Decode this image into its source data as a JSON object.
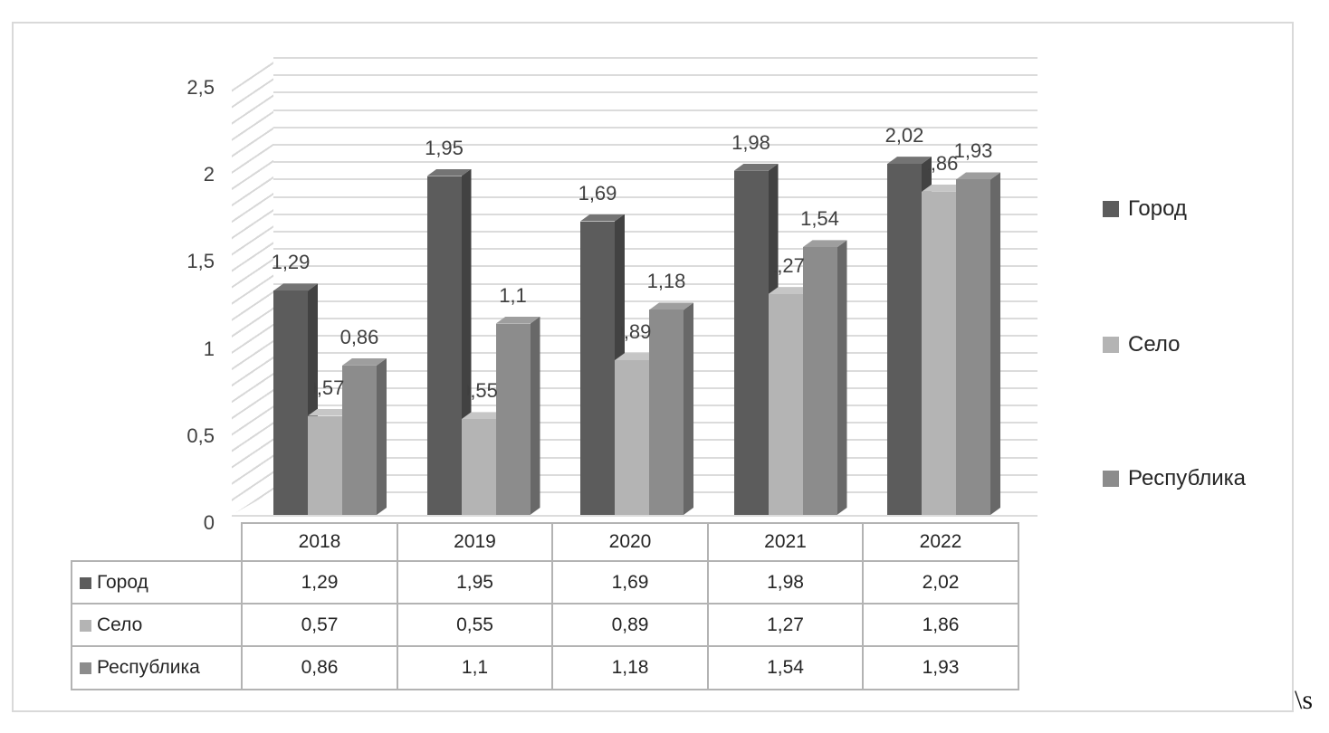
{
  "figure": {
    "border_color": "#d9d9d9",
    "background": "#ffffff",
    "corner_text": "\\s"
  },
  "chart_data": {
    "type": "bar",
    "style": "3d-clustered-column",
    "title": "",
    "xlabel": "",
    "ylabel": "",
    "categories": [
      "2018",
      "2019",
      "2020",
      "2021",
      "2022"
    ],
    "series": [
      {
        "name": "Город",
        "values": [
          1.29,
          1.95,
          1.69,
          1.98,
          2.02
        ],
        "labels": [
          "1,29",
          "1,95",
          "1,69",
          "1,98",
          "2,02"
        ],
        "color": "#5c5c5c",
        "side_color": "#424242",
        "top_color": "#747474"
      },
      {
        "name": "Село",
        "values": [
          0.57,
          0.55,
          0.89,
          1.27,
          1.86
        ],
        "labels": [
          "0,57",
          "0,55",
          "0,89",
          "1,27",
          "1,86"
        ],
        "color": "#b4b4b4",
        "side_color": "#8f8f8f",
        "top_color": "#c6c6c6"
      },
      {
        "name": "Республика",
        "values": [
          0.86,
          1.1,
          1.18,
          1.54,
          1.93
        ],
        "labels": [
          "0,86",
          "1,1",
          "1,18",
          "1,54",
          "1,93"
        ],
        "color": "#8c8c8c",
        "side_color": "#686868",
        "top_color": "#9e9e9e"
      }
    ],
    "ylim": [
      0,
      2.5
    ],
    "y_ticks": [
      {
        "value": 0,
        "label": "0"
      },
      {
        "value": 0.5,
        "label": "0,5"
      },
      {
        "value": 1,
        "label": "1"
      },
      {
        "value": 1.5,
        "label": "1,5"
      },
      {
        "value": 2,
        "label": "2"
      },
      {
        "value": 2.5,
        "label": "2,5"
      }
    ],
    "minor_gridline_step": 0.1,
    "grid": true,
    "gridline_color": "#dbdbdb",
    "legend_position": "right"
  },
  "data_table": {
    "columns": [
      "2018",
      "2019",
      "2020",
      "2021",
      "2022"
    ],
    "rows": [
      {
        "label": "Город",
        "values": [
          "1,29",
          "1,95",
          "1,69",
          "1,98",
          "2,02"
        ]
      },
      {
        "label": "Село",
        "values": [
          "0,57",
          "0,55",
          "0,89",
          "1,27",
          "1,86"
        ]
      },
      {
        "label": "Республика",
        "values": [
          "0,86",
          "1,1",
          "1,18",
          "1,54",
          "1,93"
        ]
      }
    ]
  }
}
